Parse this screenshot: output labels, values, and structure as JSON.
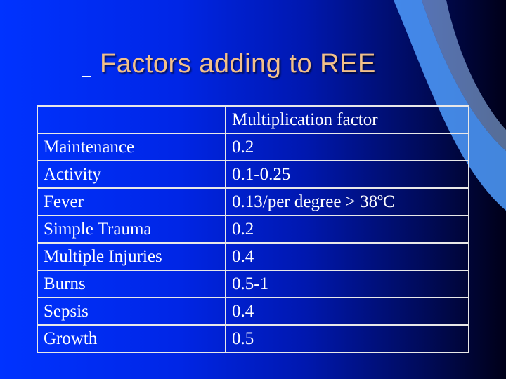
{
  "slide": {
    "title": "Factors adding to REE",
    "bullet_icon": "empty-box-glyph"
  },
  "table": {
    "header": {
      "factor": "",
      "multiplier": "Multiplication factor"
    },
    "rows": [
      {
        "factor": "Maintenance",
        "multiplier": "0.2"
      },
      {
        "factor": "Activity",
        "multiplier": "0.1-0.25"
      },
      {
        "factor": "Fever",
        "multiplier": "0.13/per degree > 38ºC"
      },
      {
        "factor": "Simple Trauma",
        "multiplier": "0.2"
      },
      {
        "factor": "Multiple Injuries",
        "multiplier": "0.4"
      },
      {
        "factor": "Burns",
        "multiplier": "0.5-1"
      },
      {
        "factor": "Sepsis",
        "multiplier": "0.4"
      },
      {
        "factor": "Growth",
        "multiplier": "0.5"
      }
    ]
  },
  "colors": {
    "title": "#f2c08a",
    "text": "#ffffff",
    "background_start": "#0033ff",
    "background_end": "#000018",
    "swoosh": "#5aa8ff"
  }
}
